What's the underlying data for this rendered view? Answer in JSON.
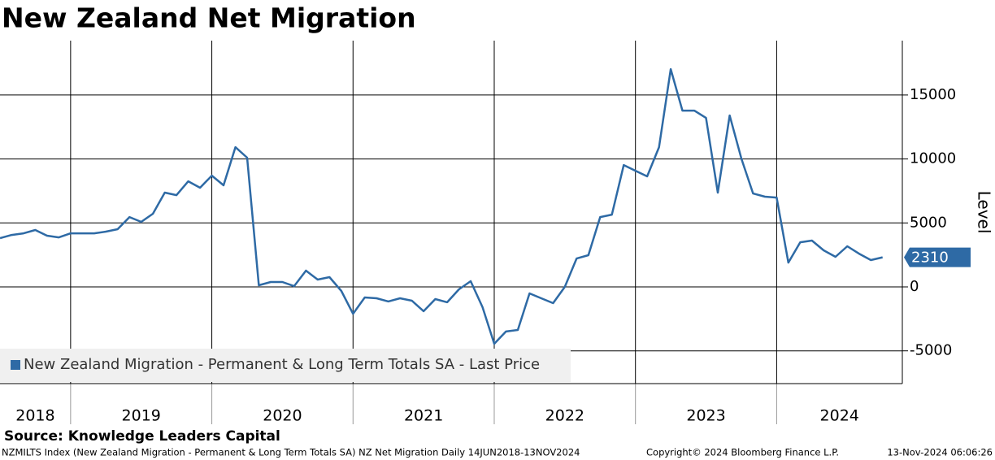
{
  "chart_data": {
    "type": "line",
    "title": "New Zealand Net Migration",
    "y_label": "Level",
    "x": [
      2018.5,
      2018.583,
      2018.667,
      2018.75,
      2018.833,
      2018.917,
      2019,
      2019.083,
      2019.167,
      2019.25,
      2019.333,
      2019.417,
      2019.5,
      2019.583,
      2019.667,
      2019.75,
      2019.833,
      2019.917,
      2020,
      2020.083,
      2020.167,
      2020.25,
      2020.333,
      2020.417,
      2020.5,
      2020.583,
      2020.667,
      2020.75,
      2020.833,
      2020.917,
      2021,
      2021.083,
      2021.167,
      2021.25,
      2021.333,
      2021.417,
      2021.5,
      2021.583,
      2021.667,
      2021.75,
      2021.833,
      2021.917,
      2022,
      2022.083,
      2022.167,
      2022.25,
      2022.333,
      2022.417,
      2022.5,
      2022.583,
      2022.667,
      2022.75,
      2022.833,
      2022.917,
      2023,
      2023.083,
      2023.167,
      2023.25,
      2023.333,
      2023.417,
      2023.5,
      2023.583,
      2023.667,
      2023.75,
      2023.833,
      2023.917,
      2024,
      2024.083,
      2024.167,
      2024.25,
      2024.333,
      2024.417,
      2024.5,
      2024.583,
      2024.667,
      2024.75
    ],
    "series": [
      {
        "name": "New Zealand Migration - Permanent & Long Term Totals SA - Last Price",
        "color": "#2e6aa5",
        "values": [
          3810,
          4060,
          4190,
          4445,
          4000,
          3870,
          4190,
          4190,
          4190,
          4320,
          4510,
          5460,
          5080,
          5715,
          7370,
          7175,
          8255,
          7750,
          8700,
          7940,
          10920,
          10100,
          130,
          380,
          380,
          60,
          1270,
          570,
          760,
          -320,
          -2100,
          -825,
          -890,
          -1140,
          -890,
          -1080,
          -1900,
          -950,
          -1200,
          -190,
          445,
          -1590,
          -4445,
          -3490,
          -3365,
          -510,
          -890,
          -1270,
          0,
          2220,
          2480,
          5460,
          5650,
          9525,
          9080,
          8640,
          10920,
          17020,
          13780,
          13780,
          13210,
          7370,
          13400,
          10030,
          7300,
          7050,
          6985,
          1900,
          3490,
          3620,
          2860,
          2350,
          3175,
          2600,
          2095,
          2310
        ]
      }
    ],
    "xlim": [
      2018.5,
      2024.89
    ],
    "xticks": [
      2019,
      2020,
      2021,
      2022,
      2023,
      2024
    ],
    "x_band_labels": [
      "2018",
      "2019",
      "2020",
      "2021",
      "2022",
      "2023",
      "2024"
    ],
    "ylim": [
      -7560,
      19250
    ],
    "yticks": [
      -5000,
      0,
      5000,
      10000,
      15000
    ],
    "grid": true,
    "source": "Source: Knowledge Leaders Capital",
    "footer": [
      "NZMILTS Index (New Zealand Migration - Permanent & Long Term Totals SA) NZ Net Migration  Daily 14JUN2018-13NOV2024",
      "Copyright© 2024 Bloomberg Finance L.P.",
      "13-Nov-2024 06:06:26"
    ]
  }
}
